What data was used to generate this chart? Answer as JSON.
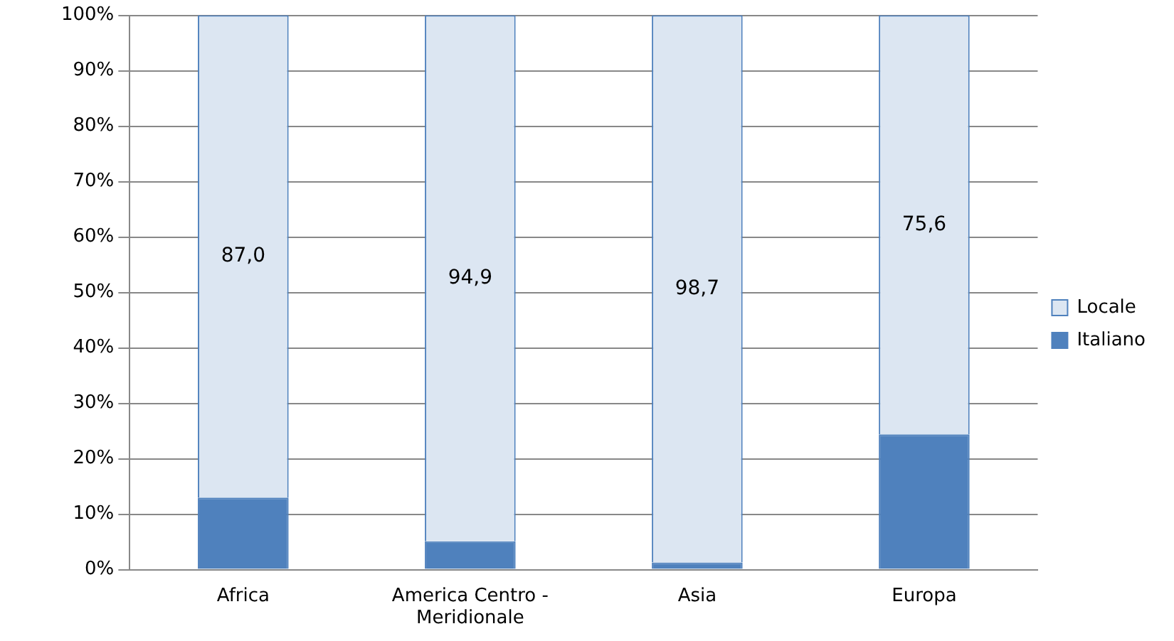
{
  "chart_data": {
    "type": "bar",
    "stacked": true,
    "categories": [
      "Africa",
      "America Centro - Meridionale",
      "Asia",
      "Europa"
    ],
    "series": [
      {
        "name": "Italiano",
        "color": "#4f81bd",
        "values": [
          13.0,
          5.1,
          1.3,
          24.4
        ]
      },
      {
        "name": "Locale",
        "color": "#dce6f2",
        "values": [
          87.0,
          94.9,
          98.7,
          75.6
        ],
        "value_labels": [
          "87,0",
          "94,9",
          "98,7",
          "75,6"
        ]
      }
    ],
    "ylim": [
      0,
      100
    ],
    "yticks": [
      {
        "value": 0,
        "label": "0%"
      },
      {
        "value": 10,
        "label": "10%"
      },
      {
        "value": 20,
        "label": "20%"
      },
      {
        "value": 30,
        "label": "30%"
      },
      {
        "value": 40,
        "label": "40%"
      },
      {
        "value": 50,
        "label": "50%"
      },
      {
        "value": 60,
        "label": "60%"
      },
      {
        "value": 70,
        "label": "70%"
      },
      {
        "value": 80,
        "label": "80%"
      },
      {
        "value": 90,
        "label": "90%"
      },
      {
        "value": 100,
        "label": "100%"
      }
    ],
    "grid": "y",
    "legend": "right"
  }
}
